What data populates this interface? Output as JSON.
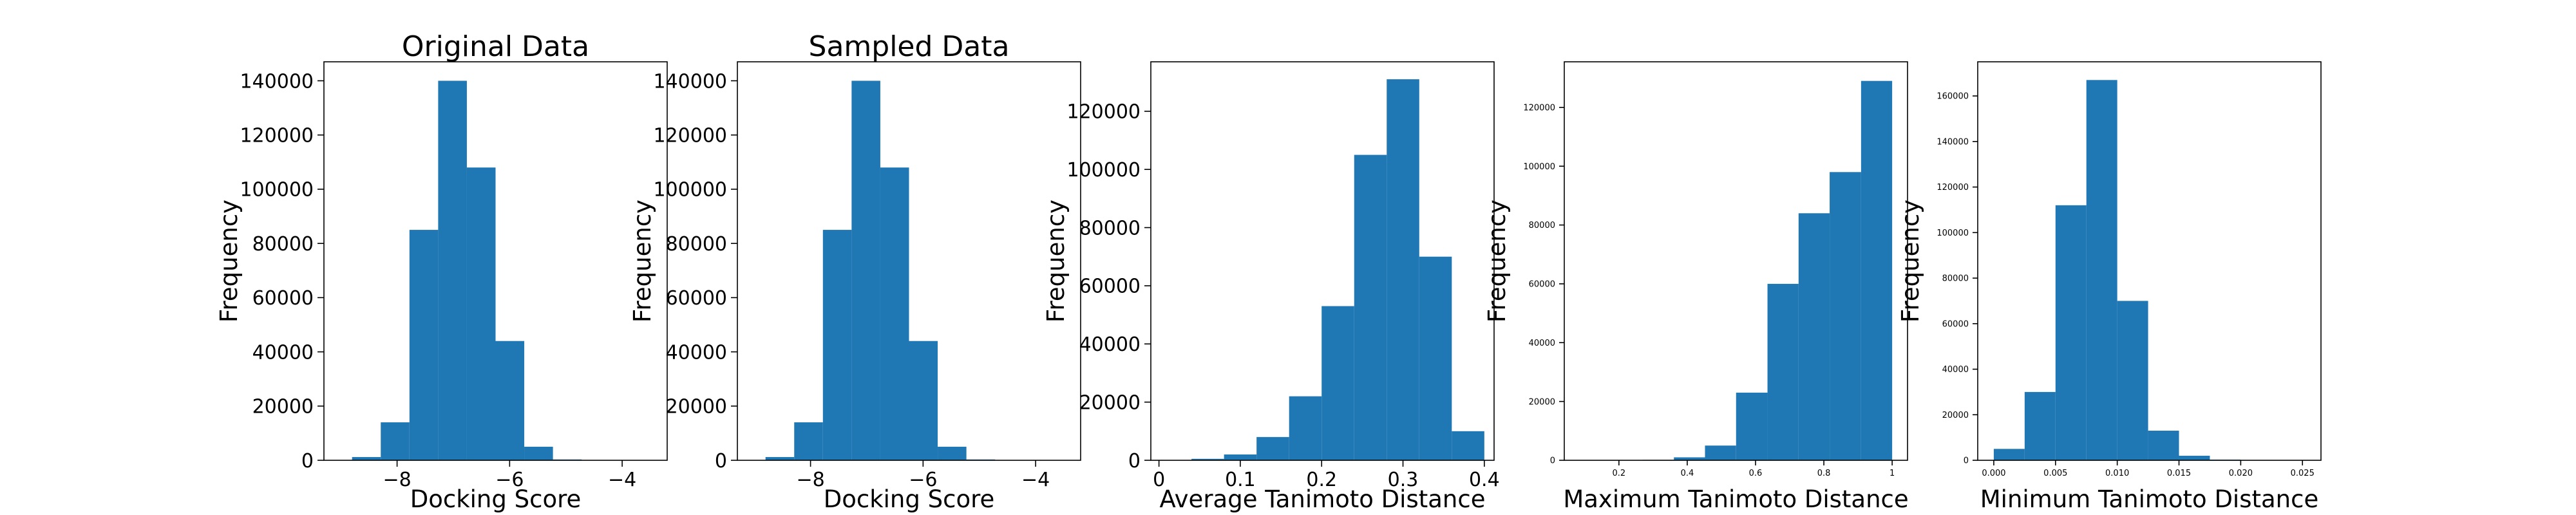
{
  "colors": {
    "bar": "#1f77b4",
    "axis": "#000000",
    "background": "#ffffff"
  },
  "chart_data": [
    {
      "type": "bar",
      "title": "Original Data",
      "xlabel": "Docking Score",
      "ylabel": "Frequency",
      "xlim": [
        -9.3,
        -3.2
      ],
      "ylim": [
        0,
        147000
      ],
      "xticks": [
        -8,
        -6,
        -4
      ],
      "yticks": [
        0,
        20000,
        40000,
        60000,
        80000,
        100000,
        120000,
        140000
      ],
      "tick_label_size": "large",
      "bins": [
        {
          "x0": -8.8,
          "x1": -8.29,
          "value": 1200
        },
        {
          "x0": -8.29,
          "x1": -7.78,
          "value": 14000
        },
        {
          "x0": -7.78,
          "x1": -7.27,
          "value": 85000
        },
        {
          "x0": -7.27,
          "x1": -6.76,
          "value": 140000
        },
        {
          "x0": -6.76,
          "x1": -6.25,
          "value": 108000
        },
        {
          "x0": -6.25,
          "x1": -5.74,
          "value": 44000
        },
        {
          "x0": -5.74,
          "x1": -5.23,
          "value": 5000
        },
        {
          "x0": -5.23,
          "x1": -4.72,
          "value": 300
        },
        {
          "x0": -4.72,
          "x1": -4.21,
          "value": 30
        },
        {
          "x0": -4.21,
          "x1": -3.7,
          "value": 5
        }
      ]
    },
    {
      "type": "bar",
      "title": "Sampled Data",
      "xlabel": "Docking Score",
      "ylabel": "Frequency",
      "xlim": [
        -9.3,
        -3.2
      ],
      "ylim": [
        0,
        147000
      ],
      "xticks": [
        -8,
        -6,
        -4
      ],
      "yticks": [
        0,
        20000,
        40000,
        60000,
        80000,
        100000,
        120000,
        140000
      ],
      "tick_label_size": "large",
      "bins": [
        {
          "x0": -8.8,
          "x1": -8.29,
          "value": 1200
        },
        {
          "x0": -8.29,
          "x1": -7.78,
          "value": 14000
        },
        {
          "x0": -7.78,
          "x1": -7.27,
          "value": 85000
        },
        {
          "x0": -7.27,
          "x1": -6.76,
          "value": 140000
        },
        {
          "x0": -6.76,
          "x1": -6.25,
          "value": 108000
        },
        {
          "x0": -6.25,
          "x1": -5.74,
          "value": 44000
        },
        {
          "x0": -5.74,
          "x1": -5.23,
          "value": 5000
        },
        {
          "x0": -5.23,
          "x1": -4.72,
          "value": 300
        },
        {
          "x0": -4.72,
          "x1": -4.21,
          "value": 30
        },
        {
          "x0": -4.21,
          "x1": -3.7,
          "value": 5
        }
      ]
    },
    {
      "type": "bar",
      "title": "",
      "xlabel": "Average Tanimoto Distance",
      "ylabel": "Frequency",
      "xlim": [
        -0.01,
        0.412
      ],
      "ylim": [
        0,
        137000
      ],
      "xticks": [
        0.0,
        0.1,
        0.2,
        0.3,
        0.4
      ],
      "yticks": [
        0,
        20000,
        40000,
        60000,
        80000,
        100000,
        120000
      ],
      "tick_label_size": "large",
      "bins": [
        {
          "x0": 0.0,
          "x1": 0.04,
          "value": 50
        },
        {
          "x0": 0.04,
          "x1": 0.08,
          "value": 500
        },
        {
          "x0": 0.08,
          "x1": 0.12,
          "value": 2000
        },
        {
          "x0": 0.12,
          "x1": 0.16,
          "value": 8000
        },
        {
          "x0": 0.16,
          "x1": 0.2,
          "value": 22000
        },
        {
          "x0": 0.2,
          "x1": 0.24,
          "value": 53000
        },
        {
          "x0": 0.24,
          "x1": 0.28,
          "value": 105000
        },
        {
          "x0": 0.28,
          "x1": 0.32,
          "value": 131000
        },
        {
          "x0": 0.32,
          "x1": 0.36,
          "value": 70000
        },
        {
          "x0": 0.36,
          "x1": 0.4,
          "value": 10000
        }
      ]
    },
    {
      "type": "bar",
      "title": "",
      "xlabel": "Maximum Tanimoto Distance",
      "ylabel": "Frequency",
      "xlim": [
        0.04,
        1.045
      ],
      "ylim": [
        0,
        135500
      ],
      "xticks": [
        0.2,
        0.4,
        0.6,
        0.8,
        1.0
      ],
      "yticks": [
        0,
        20000,
        40000,
        60000,
        80000,
        100000,
        120000
      ],
      "tick_label_size": "small",
      "bins": [
        {
          "x0": 0.087,
          "x1": 0.178,
          "value": 20
        },
        {
          "x0": 0.178,
          "x1": 0.27,
          "value": 50
        },
        {
          "x0": 0.27,
          "x1": 0.361,
          "value": 150
        },
        {
          "x0": 0.361,
          "x1": 0.452,
          "value": 1000
        },
        {
          "x0": 0.452,
          "x1": 0.543,
          "value": 5000
        },
        {
          "x0": 0.543,
          "x1": 0.635,
          "value": 23000
        },
        {
          "x0": 0.635,
          "x1": 0.726,
          "value": 60000
        },
        {
          "x0": 0.726,
          "x1": 0.817,
          "value": 84000
        },
        {
          "x0": 0.817,
          "x1": 0.909,
          "value": 98000
        },
        {
          "x0": 0.909,
          "x1": 1.0,
          "value": 129000
        }
      ]
    },
    {
      "type": "bar",
      "title": "",
      "xlabel": "Minimum Tanimoto Distance",
      "ylabel": "Frequency",
      "xlim": [
        -0.0013,
        0.0265
      ],
      "ylim": [
        0,
        175000
      ],
      "xticks": [
        0.0,
        0.005,
        0.01,
        0.015,
        0.02,
        0.025
      ],
      "xtick_labels": [
        "0.000",
        "0.005",
        "0.010",
        "0.015",
        "0.020",
        "0.025"
      ],
      "yticks": [
        0,
        20000,
        40000,
        60000,
        80000,
        100000,
        120000,
        140000,
        160000
      ],
      "tick_label_size": "small",
      "bins": [
        {
          "x0": 0.0,
          "x1": 0.0025,
          "value": 5000
        },
        {
          "x0": 0.0025,
          "x1": 0.005,
          "value": 30000
        },
        {
          "x0": 0.005,
          "x1": 0.0075,
          "value": 112000
        },
        {
          "x0": 0.0075,
          "x1": 0.01,
          "value": 167000
        },
        {
          "x0": 0.01,
          "x1": 0.0125,
          "value": 70000
        },
        {
          "x0": 0.0125,
          "x1": 0.015,
          "value": 13000
        },
        {
          "x0": 0.015,
          "x1": 0.0175,
          "value": 2000
        },
        {
          "x0": 0.0175,
          "x1": 0.02,
          "value": 300
        },
        {
          "x0": 0.02,
          "x1": 0.0225,
          "value": 40
        },
        {
          "x0": 0.0225,
          "x1": 0.025,
          "value": 5
        }
      ]
    }
  ]
}
